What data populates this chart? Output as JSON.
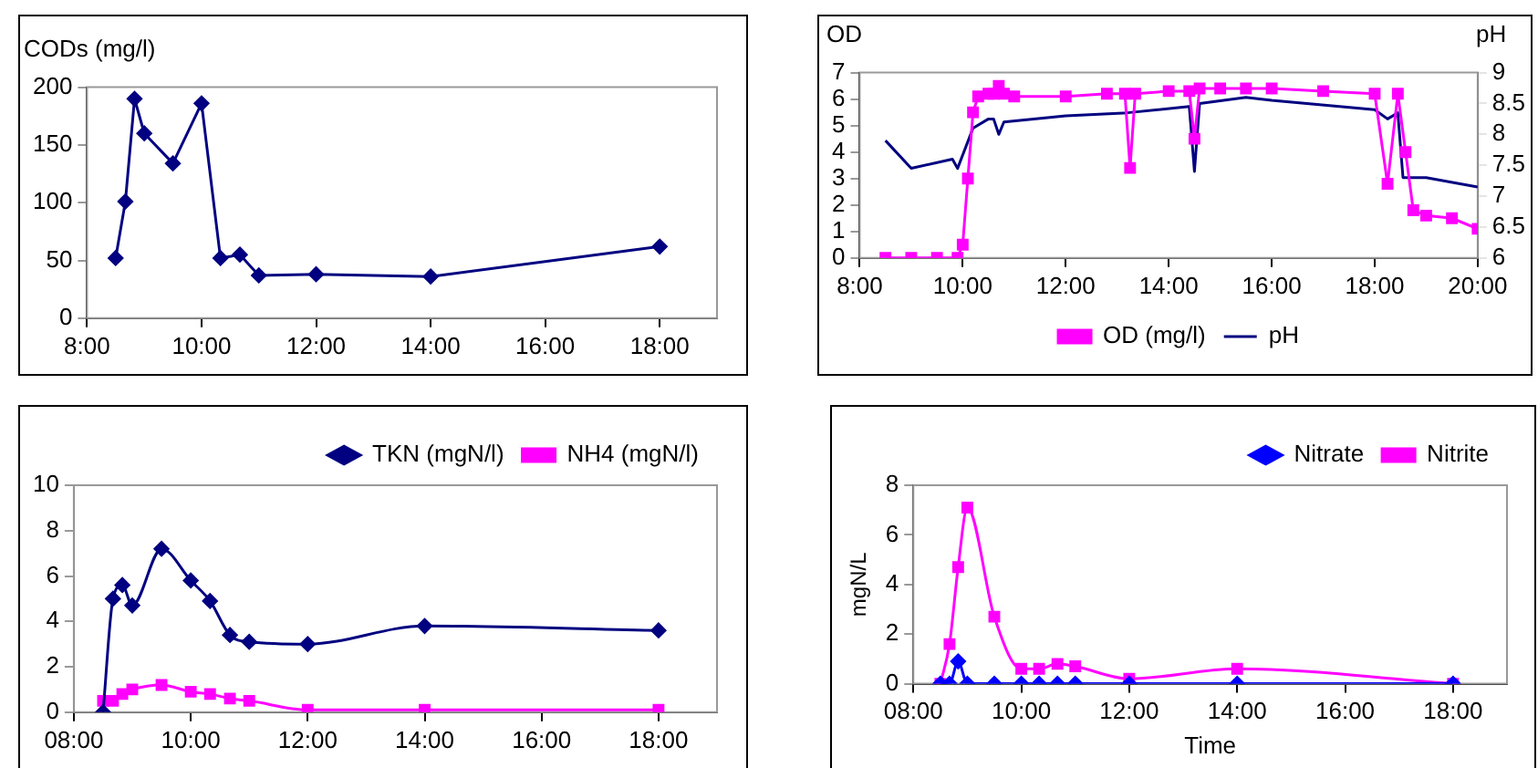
{
  "chart_data": [
    {
      "type": "line",
      "ylabel": "CODs (mg/l)",
      "xlim": [
        8,
        19
      ],
      "xticks": [
        {
          "value": 8,
          "label": "8:00"
        },
        {
          "value": 10,
          "label": "10:00"
        },
        {
          "value": 12,
          "label": "12:00"
        },
        {
          "value": 14,
          "label": "14:00"
        },
        {
          "value": 16,
          "label": "16:00"
        },
        {
          "value": 18,
          "label": "18:00"
        }
      ],
      "ylim": [
        0,
        200
      ],
      "yticks": [
        0,
        50,
        100,
        150,
        200
      ],
      "grid": false,
      "legend": false,
      "marker": "diamond",
      "line_style": "solid",
      "series": [
        {
          "color": "#000080",
          "x": [
            8.5,
            8.67,
            8.83,
            9,
            9.5,
            10,
            10.33,
            10.67,
            11,
            12,
            14,
            18
          ],
          "values": [
            52,
            101,
            190,
            160,
            134,
            186,
            52,
            55,
            37,
            38,
            36,
            62
          ]
        }
      ]
    },
    {
      "type": "line",
      "ylabel": "OD",
      "y2label": "pH",
      "xlim": [
        8,
        20
      ],
      "xticks": [
        {
          "value": 8,
          "label": "8:00"
        },
        {
          "value": 10,
          "label": "10:00"
        },
        {
          "value": 12,
          "label": "12:00"
        },
        {
          "value": 14,
          "label": "14:00"
        },
        {
          "value": 16,
          "label": "16:00"
        },
        {
          "value": 18,
          "label": "18:00"
        },
        {
          "value": 20,
          "label": "20:00"
        }
      ],
      "ylim": [
        0,
        7
      ],
      "yticks": [
        0,
        1,
        2,
        3,
        4,
        5,
        6,
        7
      ],
      "y2lim": [
        6,
        9
      ],
      "y2ticks": [
        6,
        6.5,
        7,
        7.5,
        8,
        8.5,
        9
      ],
      "grid": false,
      "legend": "bottom",
      "line_style": "solid",
      "series": [
        {
          "name": "OD (mg/l)",
          "color": "#ff00ff",
          "marker": "square",
          "x": [
            8.5,
            9,
            9.5,
            9.9,
            10,
            10.1,
            10.2,
            10.3,
            10.5,
            10.6,
            10.7,
            10.8,
            11,
            12,
            12.8,
            13.15,
            13.25,
            13.35,
            14,
            14.4,
            14.5,
            14.6,
            15,
            15.5,
            16,
            17,
            18,
            18.25,
            18.45,
            18.6,
            18.75,
            19,
            19.5,
            20
          ],
          "values": [
            0,
            0,
            0,
            0,
            0.5,
            3,
            5.5,
            6.1,
            6.2,
            6.2,
            6.5,
            6.2,
            6.1,
            6.1,
            6.2,
            6.2,
            3.4,
            6.2,
            6.3,
            6.3,
            4.5,
            6.4,
            6.4,
            6.4,
            6.4,
            6.3,
            6.2,
            2.8,
            6.2,
            4,
            1.8,
            1.6,
            1.5,
            1.1
          ]
        },
        {
          "name": "pH",
          "color": "#000080",
          "marker": "none",
          "axis": "y2",
          "x": [
            8.5,
            9,
            9.8,
            9.9,
            10.2,
            10.5,
            10.6,
            10.7,
            10.8,
            12,
            13.2,
            14.4,
            14.5,
            14.6,
            15.5,
            16,
            18,
            18.25,
            18.45,
            18.55,
            19,
            20
          ],
          "values": [
            7.9,
            7.45,
            7.6,
            7.45,
            8.1,
            8.25,
            8.25,
            8,
            8.2,
            8.3,
            8.35,
            8.45,
            7.4,
            8.5,
            8.6,
            8.55,
            8.4,
            8.25,
            8.35,
            7.3,
            7.3,
            7.15
          ]
        }
      ]
    },
    {
      "type": "line",
      "xlim": [
        8,
        19
      ],
      "xticks": [
        {
          "value": 8,
          "label": "08:00"
        },
        {
          "value": 10,
          "label": "10:00"
        },
        {
          "value": 12,
          "label": "12:00"
        },
        {
          "value": 14,
          "label": "14:00"
        },
        {
          "value": 16,
          "label": "16:00"
        },
        {
          "value": 18,
          "label": "18:00"
        }
      ],
      "ylim": [
        0,
        10
      ],
      "yticks": [
        0,
        2,
        4,
        6,
        8,
        10
      ],
      "grid": false,
      "legend": "top right",
      "line_style": "solid",
      "series": [
        {
          "name": "TKN (mgN/l)",
          "color": "#000080",
          "marker": "diamond",
          "x": [
            8.5,
            8.67,
            8.83,
            9,
            9.5,
            10,
            10.33,
            10.67,
            11,
            12,
            14,
            18
          ],
          "values": [
            0,
            5,
            5.6,
            4.7,
            7.2,
            5.8,
            4.9,
            3.4,
            3.1,
            3,
            3.8,
            3.6
          ]
        },
        {
          "name": "NH4 (mgN/l)",
          "color": "#ff00ff",
          "marker": "square",
          "x": [
            8.5,
            8.67,
            8.83,
            9,
            9.5,
            10,
            10.33,
            10.67,
            11,
            12,
            14,
            18
          ],
          "values": [
            0.5,
            0.5,
            0.8,
            1,
            1.2,
            0.9,
            0.8,
            0.6,
            0.5,
            0.1,
            0.1,
            0.1
          ]
        }
      ]
    },
    {
      "type": "line",
      "xlabel": "Time",
      "ylabel": "mgN/L",
      "xlim": [
        8,
        19
      ],
      "xticks": [
        {
          "value": 8,
          "label": "08:00"
        },
        {
          "value": 10,
          "label": "10:00"
        },
        {
          "value": 12,
          "label": "12:00"
        },
        {
          "value": 14,
          "label": "14:00"
        },
        {
          "value": 16,
          "label": "16:00"
        },
        {
          "value": 18,
          "label": "18:00"
        }
      ],
      "ylim": [
        0,
        8
      ],
      "yticks": [
        0,
        2,
        4,
        6,
        8
      ],
      "grid": false,
      "legend": "top right",
      "line_style": "solid",
      "series": [
        {
          "name": "Nitrate",
          "color": "#0000ff",
          "marker": "diamond",
          "x": [
            8.5,
            8.67,
            8.83,
            9,
            9.5,
            10,
            10.33,
            10.67,
            11,
            12,
            14,
            18
          ],
          "values": [
            0,
            0,
            0.9,
            0,
            0,
            0,
            0,
            0,
            0,
            0,
            0,
            0
          ]
        },
        {
          "name": "Nitrite",
          "color": "#ff00ff",
          "marker": "square",
          "x": [
            8.5,
            8.67,
            8.83,
            9,
            9.5,
            10,
            10.33,
            10.67,
            11,
            12,
            14,
            18
          ],
          "values": [
            0,
            1.6,
            4.7,
            7.1,
            2.7,
            0.6,
            0.6,
            0.8,
            0.7,
            0.2,
            0.6,
            0
          ]
        }
      ]
    }
  ]
}
